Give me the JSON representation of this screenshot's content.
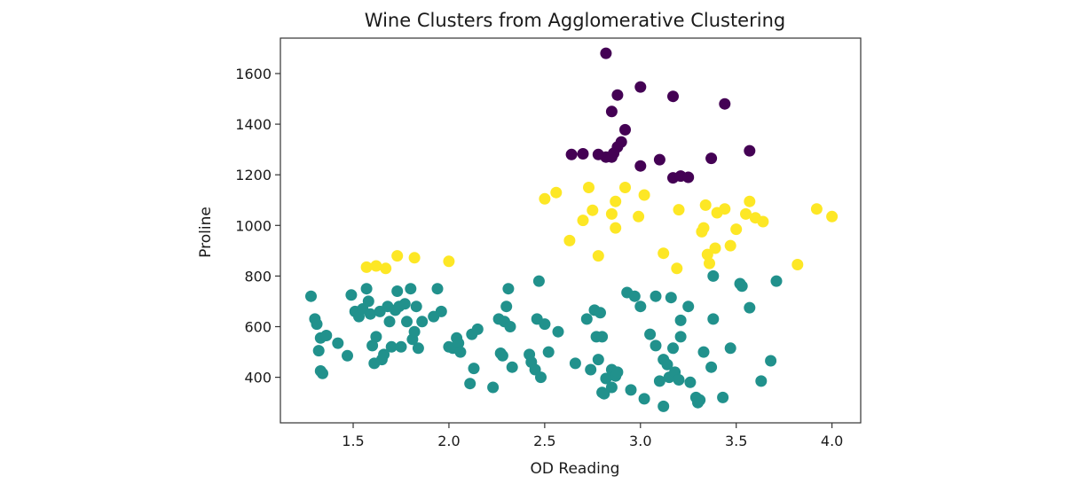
{
  "chart_data": {
    "type": "scatter",
    "title": "Wine Clusters from Agglomerative Clustering",
    "xlabel": "OD Reading",
    "ylabel": "Proline",
    "xlim": [
      1.12,
      4.15
    ],
    "ylim": [
      220,
      1740
    ],
    "xticks": [
      1.5,
      2.0,
      2.5,
      3.0,
      3.5,
      4.0
    ],
    "xtick_labels": [
      "1.5",
      "2.0",
      "2.5",
      "3.0",
      "3.5",
      "4.0"
    ],
    "yticks": [
      400,
      600,
      800,
      1000,
      1200,
      1400,
      1600
    ],
    "ytick_labels": [
      "400",
      "600",
      "800",
      "1000",
      "1200",
      "1400",
      "1600"
    ],
    "grid": false,
    "colormap": "viridis",
    "series": [
      {
        "color": "#440154",
        "points": [
          [
            2.82,
            1680
          ],
          [
            2.88,
            1515
          ],
          [
            3.0,
            1547
          ],
          [
            3.17,
            1510
          ],
          [
            2.85,
            1450
          ],
          [
            3.44,
            1480
          ],
          [
            2.92,
            1378
          ],
          [
            2.9,
            1330
          ],
          [
            2.88,
            1310
          ],
          [
            2.86,
            1285
          ],
          [
            2.82,
            1270
          ],
          [
            2.78,
            1280
          ],
          [
            2.7,
            1283
          ],
          [
            2.64,
            1280
          ],
          [
            2.85,
            1270
          ],
          [
            3.57,
            1295
          ],
          [
            3.37,
            1265
          ],
          [
            3.1,
            1260
          ],
          [
            3.0,
            1235
          ],
          [
            3.17,
            1188
          ],
          [
            3.21,
            1195
          ],
          [
            3.25,
            1190
          ]
        ]
      },
      {
        "color": "#fde725",
        "points": [
          [
            1.57,
            835
          ],
          [
            1.62,
            840
          ],
          [
            1.67,
            830
          ],
          [
            1.73,
            880
          ],
          [
            1.82,
            872
          ],
          [
            2.0,
            858
          ],
          [
            2.5,
            1105
          ],
          [
            2.56,
            1130
          ],
          [
            2.73,
            1150
          ],
          [
            2.75,
            1060
          ],
          [
            2.7,
            1020
          ],
          [
            2.63,
            940
          ],
          [
            2.78,
            880
          ],
          [
            2.85,
            1045
          ],
          [
            2.87,
            1095
          ],
          [
            2.87,
            990
          ],
          [
            2.92,
            1150
          ],
          [
            2.99,
            1035
          ],
          [
            3.02,
            1120
          ],
          [
            3.12,
            890
          ],
          [
            3.2,
            1062
          ],
          [
            3.19,
            830
          ],
          [
            3.32,
            975
          ],
          [
            3.33,
            990
          ],
          [
            3.34,
            1080
          ],
          [
            3.35,
            885
          ],
          [
            3.36,
            850
          ],
          [
            3.39,
            910
          ],
          [
            3.4,
            1050
          ],
          [
            3.44,
            1065
          ],
          [
            3.47,
            920
          ],
          [
            3.5,
            985
          ],
          [
            3.55,
            1045
          ],
          [
            3.57,
            1095
          ],
          [
            3.6,
            1030
          ],
          [
            3.64,
            1015
          ],
          [
            3.82,
            845
          ],
          [
            3.92,
            1065
          ],
          [
            4.0,
            1035
          ]
        ]
      },
      {
        "color": "#21918c",
        "points": [
          [
            1.28,
            720
          ],
          [
            1.3,
            630
          ],
          [
            1.31,
            610
          ],
          [
            1.32,
            505
          ],
          [
            1.33,
            555
          ],
          [
            1.33,
            425
          ],
          [
            1.34,
            415
          ],
          [
            1.36,
            565
          ],
          [
            1.42,
            535
          ],
          [
            1.47,
            485
          ],
          [
            1.49,
            725
          ],
          [
            1.51,
            660
          ],
          [
            1.53,
            640
          ],
          [
            1.55,
            670
          ],
          [
            1.57,
            750
          ],
          [
            1.58,
            700
          ],
          [
            1.59,
            650
          ],
          [
            1.6,
            525
          ],
          [
            1.61,
            455
          ],
          [
            1.62,
            560
          ],
          [
            1.64,
            660
          ],
          [
            1.65,
            470
          ],
          [
            1.66,
            490
          ],
          [
            1.68,
            680
          ],
          [
            1.69,
            620
          ],
          [
            1.7,
            520
          ],
          [
            1.72,
            665
          ],
          [
            1.73,
            740
          ],
          [
            1.74,
            680
          ],
          [
            1.75,
            520
          ],
          [
            1.77,
            690
          ],
          [
            1.78,
            620
          ],
          [
            1.8,
            750
          ],
          [
            1.81,
            550
          ],
          [
            1.82,
            580
          ],
          [
            1.83,
            680
          ],
          [
            1.84,
            515
          ],
          [
            1.86,
            620
          ],
          [
            1.92,
            640
          ],
          [
            1.94,
            750
          ],
          [
            1.96,
            660
          ],
          [
            2.0,
            520
          ],
          [
            2.02,
            515
          ],
          [
            2.04,
            555
          ],
          [
            2.05,
            535
          ],
          [
            2.06,
            500
          ],
          [
            2.11,
            375
          ],
          [
            2.12,
            570
          ],
          [
            2.13,
            435
          ],
          [
            2.15,
            590
          ],
          [
            2.23,
            360
          ],
          [
            2.26,
            630
          ],
          [
            2.27,
            495
          ],
          [
            2.28,
            485
          ],
          [
            2.29,
            620
          ],
          [
            2.3,
            680
          ],
          [
            2.31,
            750
          ],
          [
            2.32,
            600
          ],
          [
            2.33,
            440
          ],
          [
            2.42,
            490
          ],
          [
            2.43,
            460
          ],
          [
            2.45,
            430
          ],
          [
            2.46,
            630
          ],
          [
            2.47,
            780
          ],
          [
            2.48,
            400
          ],
          [
            2.5,
            610
          ],
          [
            2.52,
            500
          ],
          [
            2.57,
            580
          ],
          [
            2.66,
            455
          ],
          [
            2.72,
            630
          ],
          [
            2.74,
            430
          ],
          [
            2.76,
            665
          ],
          [
            2.77,
            560
          ],
          [
            2.78,
            470
          ],
          [
            2.79,
            655
          ],
          [
            2.8,
            560
          ],
          [
            2.8,
            340
          ],
          [
            2.81,
            335
          ],
          [
            2.82,
            395
          ],
          [
            2.85,
            430
          ],
          [
            2.85,
            360
          ],
          [
            2.87,
            405
          ],
          [
            2.88,
            420
          ],
          [
            2.93,
            735
          ],
          [
            2.95,
            350
          ],
          [
            2.97,
            720
          ],
          [
            3.0,
            680
          ],
          [
            3.02,
            315
          ],
          [
            3.05,
            570
          ],
          [
            3.08,
            525
          ],
          [
            3.08,
            720
          ],
          [
            3.1,
            385
          ],
          [
            3.12,
            285
          ],
          [
            3.12,
            470
          ],
          [
            3.14,
            450
          ],
          [
            3.15,
            400
          ],
          [
            3.16,
            715
          ],
          [
            3.17,
            515
          ],
          [
            3.18,
            420
          ],
          [
            3.2,
            390
          ],
          [
            3.21,
            625
          ],
          [
            3.21,
            560
          ],
          [
            3.25,
            680
          ],
          [
            3.26,
            380
          ],
          [
            3.29,
            320
          ],
          [
            3.3,
            300
          ],
          [
            3.31,
            310
          ],
          [
            3.33,
            500
          ],
          [
            3.37,
            440
          ],
          [
            3.38,
            800
          ],
          [
            3.38,
            630
          ],
          [
            3.43,
            320
          ],
          [
            3.47,
            515
          ],
          [
            3.52,
            770
          ],
          [
            3.53,
            760
          ],
          [
            3.57,
            675
          ],
          [
            3.63,
            385
          ],
          [
            3.68,
            465
          ],
          [
            3.71,
            780
          ]
        ]
      }
    ]
  }
}
